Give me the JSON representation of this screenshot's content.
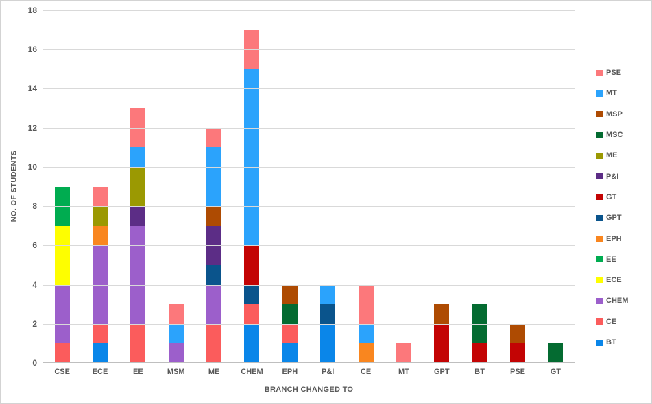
{
  "chart_data": {
    "type": "bar",
    "stacked": true,
    "title": "",
    "xlabel": "BRANCH CHANGED TO",
    "ylabel": "NO. OF STUDENTS",
    "ylim": [
      0,
      18
    ],
    "ytick_step": 2,
    "grid": true,
    "legend_position": "right",
    "categories": [
      "CSE",
      "ECE",
      "EE",
      "MSM",
      "ME",
      "CHEM",
      "EPH",
      "P&I",
      "CE",
      "MT",
      "GPT",
      "BT",
      "PSE",
      "GT"
    ],
    "series": [
      {
        "name": "BT",
        "color": "#0A86E9",
        "values": [
          0,
          1,
          0,
          0,
          0,
          2,
          1,
          2,
          0,
          0,
          0,
          0,
          0,
          0
        ]
      },
      {
        "name": "CE",
        "color": "#FB5C5C",
        "values": [
          1,
          1,
          2,
          0,
          2,
          1,
          1,
          0,
          0,
          0,
          0,
          0,
          0,
          0
        ]
      },
      {
        "name": "CHEM",
        "color": "#9C5FCB",
        "values": [
          3,
          4,
          5,
          1,
          2,
          0,
          0,
          0,
          0,
          0,
          0,
          0,
          0,
          0
        ]
      },
      {
        "name": "ECE",
        "color": "#FEFE00",
        "values": [
          3,
          0,
          0,
          0,
          0,
          0,
          0,
          0,
          0,
          0,
          0,
          0,
          0,
          0
        ]
      },
      {
        "name": "EE",
        "color": "#00AC50",
        "values": [
          2,
          0,
          0,
          0,
          0,
          0,
          0,
          0,
          0,
          0,
          0,
          0,
          0,
          0
        ]
      },
      {
        "name": "EPH",
        "color": "#F9861F",
        "values": [
          0,
          1,
          0,
          0,
          0,
          0,
          0,
          0,
          1,
          0,
          0,
          0,
          0,
          0
        ]
      },
      {
        "name": "GPT",
        "color": "#0A548C",
        "values": [
          0,
          0,
          0,
          0,
          1,
          1,
          0,
          1,
          0,
          0,
          0,
          0,
          0,
          0
        ]
      },
      {
        "name": "GT",
        "color": "#C30404",
        "values": [
          0,
          0,
          0,
          0,
          0,
          2,
          0,
          0,
          0,
          0,
          2,
          1,
          1,
          0
        ]
      },
      {
        "name": "P&I",
        "color": "#5C2D86",
        "values": [
          0,
          0,
          1,
          0,
          2,
          0,
          0,
          0,
          0,
          0,
          0,
          0,
          0,
          0
        ]
      },
      {
        "name": "ME",
        "color": "#9B9902",
        "values": [
          0,
          1,
          2,
          0,
          0,
          0,
          0,
          0,
          0,
          0,
          0,
          0,
          0,
          0
        ]
      },
      {
        "name": "MSC",
        "color": "#046B31",
        "values": [
          0,
          0,
          0,
          0,
          0,
          0,
          1,
          0,
          0,
          0,
          0,
          2,
          0,
          1
        ]
      },
      {
        "name": "MSP",
        "color": "#AE4B02",
        "values": [
          0,
          0,
          0,
          0,
          1,
          0,
          1,
          0,
          0,
          0,
          1,
          0,
          1,
          0
        ]
      },
      {
        "name": "MT",
        "color": "#2BA3FC",
        "values": [
          0,
          0,
          1,
          1,
          3,
          9,
          0,
          1,
          1,
          0,
          0,
          0,
          0,
          0
        ]
      },
      {
        "name": "PSE",
        "color": "#FC787B",
        "values": [
          0,
          1,
          2,
          1,
          1,
          2,
          0,
          0,
          2,
          1,
          0,
          0,
          0,
          0
        ]
      }
    ],
    "category_totals": [
      9,
      9,
      13,
      3,
      12,
      17,
      4,
      4,
      4,
      1,
      3,
      3,
      2,
      1
    ],
    "legend_order_top_to_bottom": [
      "PSE",
      "MT",
      "MSP",
      "MSC",
      "ME",
      "P&I",
      "GT",
      "GPT",
      "EPH",
      "EE",
      "ECE",
      "CHEM",
      "CE",
      "BT"
    ]
  },
  "colors": {
    "text": "#595959",
    "gridline": "#D9D9D9",
    "baseline": "#BFBFBF",
    "border": "#D3D3D3",
    "background": "#FFFFFF"
  }
}
